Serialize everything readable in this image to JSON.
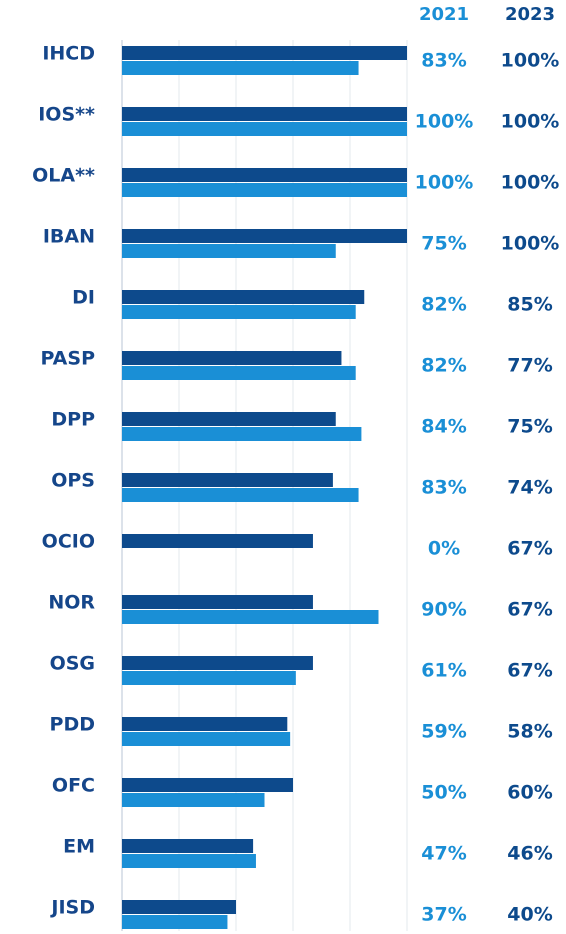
{
  "chart_data": {
    "type": "bar",
    "orientation": "horizontal",
    "categories": [
      "IHCD",
      "IOS**",
      "OLA**",
      "IBAN",
      "DI",
      "PASP",
      "DPP",
      "OPS",
      "OCIO",
      "NOR",
      "OSG",
      "PDD",
      "OFC",
      "EM",
      "JISD"
    ],
    "series": [
      {
        "name": "2023",
        "color": "#0d4a8c",
        "values": [
          100,
          100,
          100,
          100,
          85,
          77,
          75,
          74,
          67,
          67,
          67,
          58,
          60,
          46,
          40
        ],
        "value_labels": [
          "100%",
          "100%",
          "100%",
          "100%",
          "85%",
          "77%",
          "75%",
          "74%",
          "67%",
          "67%",
          "67%",
          "58%",
          "60%",
          "46%",
          "40%"
        ]
      },
      {
        "name": "2021",
        "color": "#1a8fd6",
        "values": [
          83,
          100,
          100,
          75,
          82,
          82,
          84,
          83,
          0,
          90,
          61,
          59,
          50,
          47,
          37
        ],
        "value_labels": [
          "83%",
          "100%",
          "100%",
          "75%",
          "82%",
          "82%",
          "84%",
          "83%",
          "0%",
          "90%",
          "61%",
          "59%",
          "50%",
          "47%",
          "37%"
        ]
      }
    ],
    "xlim": [
      0,
      100
    ],
    "xticks": [
      0,
      20,
      40,
      60,
      80,
      100
    ],
    "grid": true
  }
}
